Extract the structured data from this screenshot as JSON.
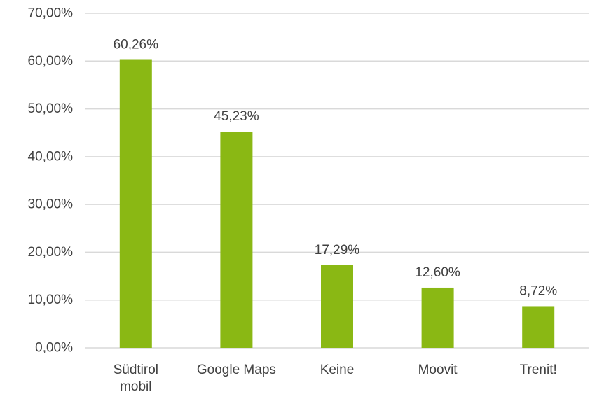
{
  "chart_data": {
    "type": "bar",
    "categories": [
      [
        "Südtirol",
        "mobil"
      ],
      [
        "Google Maps"
      ],
      [
        "Keine"
      ],
      [
        "Moovit"
      ],
      [
        "Trenit!"
      ]
    ],
    "values": [
      60.26,
      45.23,
      17.29,
      12.6,
      8.72
    ],
    "data_labels": [
      "60,26%",
      "45,23%",
      "17,29%",
      "12,60%",
      "8,72%"
    ],
    "ylim": [
      0,
      70
    ],
    "y_ticks": [
      0,
      10,
      20,
      30,
      40,
      50,
      60,
      70
    ],
    "y_tick_labels": [
      "0,00%",
      "10,00%",
      "20,00%",
      "30,00%",
      "40,00%",
      "50,00%",
      "60,00%",
      "70,00%"
    ],
    "title": "",
    "xlabel": "",
    "ylabel": "",
    "grid": true,
    "legend": "none",
    "bar_color": "#8ab814",
    "grid_color": "#d9d9d9",
    "text_color": "#404040"
  }
}
